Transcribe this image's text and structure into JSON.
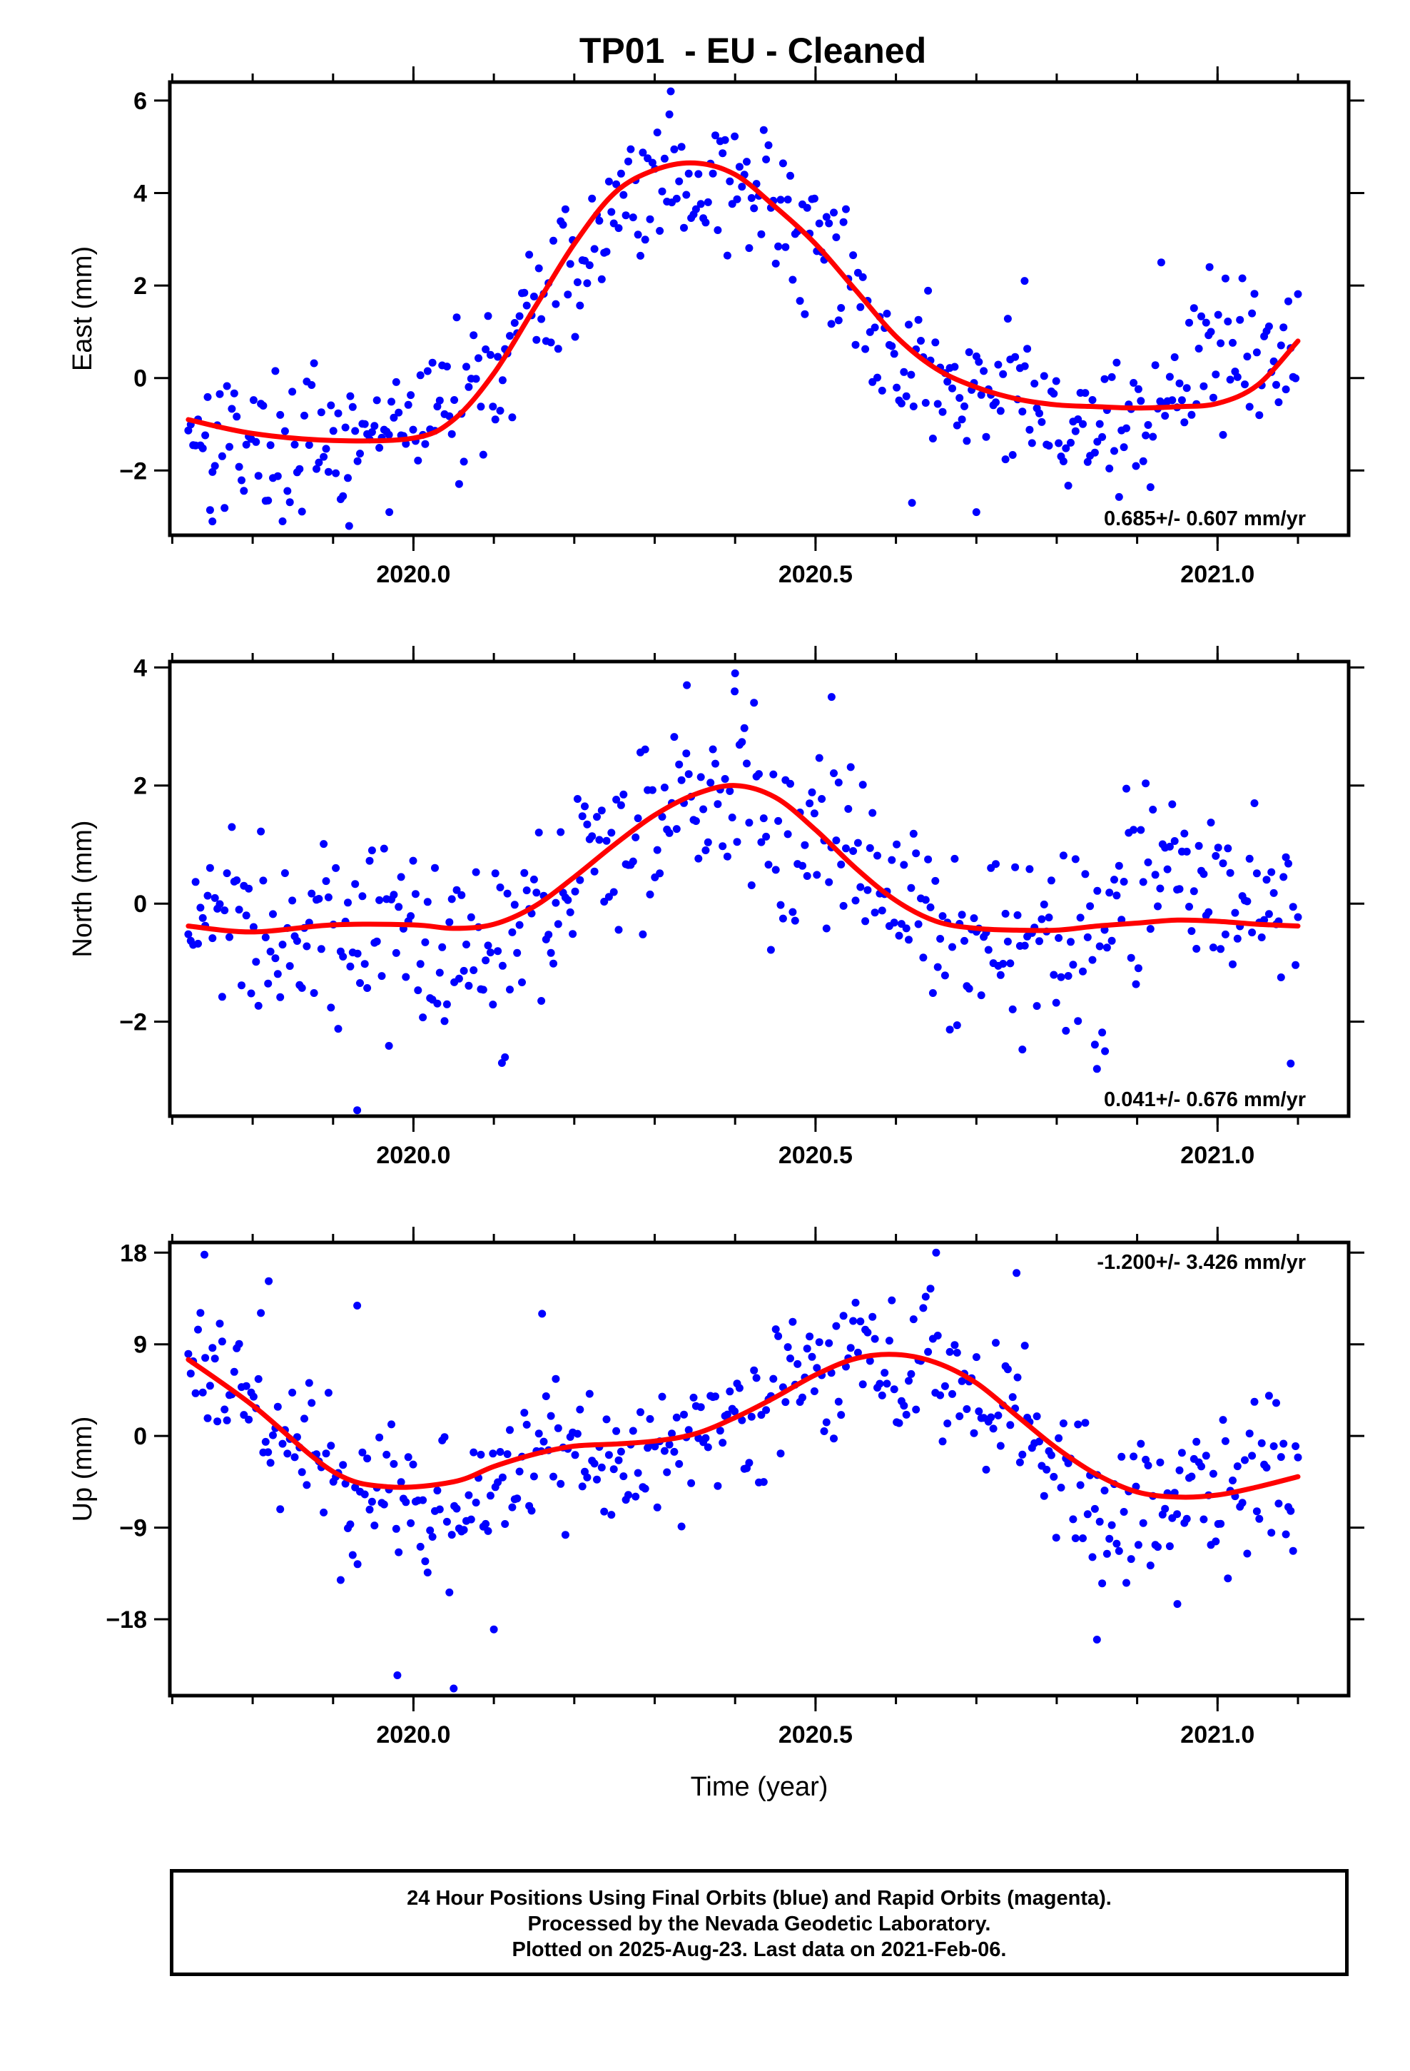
{
  "title": "TP01  - EU - Cleaned",
  "footer": {
    "line1": "24 Hour Positions Using Final Orbits (blue) and Rapid Orbits (magenta).",
    "line2": "Processed by the Nevada Geodetic Laboratory.",
    "line3": "Plotted on 2025-Aug-23. Last data on 2021-Feb-06."
  },
  "colors": {
    "points": "#0000ff",
    "fit": "#ff0000",
    "frame": "#000000"
  },
  "chart_data": [
    {
      "type": "scatter",
      "ylabel": "East (mm)",
      "xlabel": "",
      "xlim": [
        2019.697,
        2021.163
      ],
      "ylim": [
        -3.4,
        6.4
      ],
      "xticks": [
        2020.0,
        2020.5,
        2021.0
      ],
      "xtick_labels": [
        "2020.0",
        "2020.5",
        "2021.0"
      ],
      "yticks": [
        -2,
        0,
        2,
        4,
        6
      ],
      "ytick_labels": [
        "−2",
        "0",
        "2",
        "4",
        "6"
      ],
      "rate": "0.685+/- 0.607 mm/yr",
      "rate_position": "bottom-right",
      "fit": {
        "x": [
          2019.72,
          2019.8,
          2019.9,
          2020.0,
          2020.05,
          2020.1,
          2020.15,
          2020.2,
          2020.25,
          2020.3,
          2020.35,
          2020.4,
          2020.45,
          2020.5,
          2020.55,
          2020.6,
          2020.65,
          2020.7,
          2020.75,
          2020.8,
          2020.85,
          2020.9,
          2020.95,
          2021.0,
          2021.05,
          2021.1
        ],
        "y": [
          -0.9,
          -1.2,
          -1.35,
          -1.3,
          -0.9,
          0.1,
          1.5,
          2.9,
          4.0,
          4.5,
          4.65,
          4.4,
          3.7,
          2.9,
          1.9,
          0.9,
          0.2,
          -0.2,
          -0.45,
          -0.58,
          -0.62,
          -0.65,
          -0.62,
          -0.55,
          -0.15,
          0.8
        ]
      },
      "points": {
        "anchors_x": [
          2019.72,
          2019.8,
          2019.9,
          2020.0,
          2020.05,
          2020.1,
          2020.15,
          2020.2,
          2020.25,
          2020.3,
          2020.35,
          2020.4,
          2020.45,
          2020.5,
          2020.55,
          2020.6,
          2020.65,
          2020.7,
          2020.75,
          2020.8,
          2020.85,
          2020.9,
          2020.95,
          2021.0,
          2021.05,
          2021.1
        ],
        "anchors_y": [
          -0.9,
          -1.4,
          -1.6,
          -1.0,
          -0.4,
          0.2,
          1.3,
          2.4,
          3.7,
          4.3,
          4.2,
          4.2,
          3.5,
          2.9,
          1.8,
          0.5,
          -0.1,
          -0.3,
          -0.4,
          -0.9,
          -1.0,
          -0.9,
          -0.3,
          0.6,
          0.5,
          0.3
        ],
        "count": 460,
        "spread": 0.75,
        "outliers": [
          [
            2019.75,
            -3.1
          ],
          [
            2019.92,
            -3.2
          ],
          [
            2019.97,
            -2.9
          ],
          [
            2020.32,
            6.2
          ],
          [
            2020.62,
            -2.7
          ],
          [
            2020.7,
            -2.9
          ],
          [
            2020.93,
            2.5
          ],
          [
            2020.99,
            2.4
          ],
          [
            2020.76,
            2.1
          ]
        ]
      }
    },
    {
      "type": "scatter",
      "ylabel": "North (mm)",
      "xlabel": "",
      "xlim": [
        2019.697,
        2021.163
      ],
      "ylim": [
        -3.6,
        4.1
      ],
      "xticks": [
        2020.0,
        2020.5,
        2021.0
      ],
      "xtick_labels": [
        "2020.0",
        "2020.5",
        "2021.0"
      ],
      "yticks": [
        -2,
        0,
        2,
        4
      ],
      "ytick_labels": [
        "−2",
        "0",
        "2",
        "4"
      ],
      "rate": "0.041+/- 0.676 mm/yr",
      "rate_position": "bottom-right",
      "fit": {
        "x": [
          2019.72,
          2019.8,
          2019.9,
          2020.0,
          2020.05,
          2020.1,
          2020.15,
          2020.2,
          2020.25,
          2020.3,
          2020.35,
          2020.4,
          2020.45,
          2020.5,
          2020.55,
          2020.6,
          2020.65,
          2020.7,
          2020.75,
          2020.8,
          2020.85,
          2020.9,
          2020.95,
          2021.0,
          2021.05,
          2021.1
        ],
        "y": [
          -0.38,
          -0.48,
          -0.36,
          -0.36,
          -0.42,
          -0.35,
          -0.05,
          0.45,
          1.0,
          1.5,
          1.85,
          2.0,
          1.8,
          1.25,
          0.6,
          0.05,
          -0.3,
          -0.42,
          -0.45,
          -0.45,
          -0.38,
          -0.33,
          -0.28,
          -0.3,
          -0.35,
          -0.38
        ]
      },
      "points": {
        "anchors_x": [
          2019.72,
          2019.8,
          2019.9,
          2020.0,
          2020.05,
          2020.1,
          2020.15,
          2020.2,
          2020.25,
          2020.3,
          2020.35,
          2020.4,
          2020.45,
          2020.5,
          2020.55,
          2020.6,
          2020.65,
          2020.7,
          2020.75,
          2020.8,
          2020.85,
          2020.9,
          2020.95,
          2021.0,
          2021.05,
          2021.1
        ],
        "anchors_y": [
          -0.4,
          -0.3,
          -0.6,
          -0.3,
          -0.6,
          -0.8,
          -0.2,
          0.3,
          1.0,
          1.6,
          2.0,
          2.2,
          1.2,
          1.3,
          0.7,
          0.1,
          -0.3,
          -0.5,
          -0.6,
          -0.7,
          -0.8,
          0.3,
          0.6,
          0.2,
          0.0,
          -0.5
        ],
        "count": 460,
        "spread": 0.8,
        "outliers": [
          [
            2019.93,
            -3.5
          ],
          [
            2020.11,
            -2.7
          ],
          [
            2020.4,
            3.9
          ],
          [
            2020.85,
            -2.8
          ],
          [
            2020.86,
            -2.5
          ],
          [
            2020.52,
            3.5
          ],
          [
            2020.34,
            3.7
          ]
        ]
      }
    },
    {
      "type": "scatter",
      "ylabel": "Up (mm)",
      "xlabel": "Time (year)",
      "xlim": [
        2019.697,
        2021.163
      ],
      "ylim": [
        -25.5,
        19.0
      ],
      "xticks": [
        2020.0,
        2020.5,
        2021.0
      ],
      "xtick_labels": [
        "2020.0",
        "2020.5",
        "2021.0"
      ],
      "yticks": [
        -18,
        -9,
        0,
        9,
        18
      ],
      "ytick_labels": [
        "−18",
        "−9",
        "0",
        "9",
        "18"
      ],
      "rate": "-1.200+/- 3.426 mm/yr",
      "rate_position": "top-right",
      "fit": {
        "x": [
          2019.72,
          2019.8,
          2019.9,
          2019.97,
          2020.05,
          2020.1,
          2020.15,
          2020.2,
          2020.25,
          2020.3,
          2020.35,
          2020.4,
          2020.45,
          2020.5,
          2020.55,
          2020.6,
          2020.65,
          2020.7,
          2020.75,
          2020.8,
          2020.85,
          2020.9,
          2020.95,
          2021.0,
          2021.05,
          2021.1
        ],
        "y": [
          7.5,
          3.0,
          -3.5,
          -5.0,
          -4.5,
          -3.0,
          -1.8,
          -1.0,
          -0.8,
          -0.5,
          0.2,
          1.8,
          3.8,
          6.0,
          7.6,
          8.0,
          7.2,
          5.2,
          2.0,
          -1.2,
          -3.8,
          -5.5,
          -6.0,
          -5.8,
          -5.0,
          -4.0
        ]
      },
      "points": {
        "anchors_x": [
          2019.72,
          2019.8,
          2019.9,
          2019.97,
          2020.05,
          2020.1,
          2020.15,
          2020.2,
          2020.25,
          2020.3,
          2020.35,
          2020.4,
          2020.45,
          2020.5,
          2020.55,
          2020.6,
          2020.65,
          2020.7,
          2020.75,
          2020.8,
          2020.85,
          2020.9,
          2020.95,
          2021.0,
          2021.05,
          2021.1
        ],
        "anchors_y": [
          8.0,
          3.0,
          -4.5,
          -6.0,
          -7.0,
          -3.5,
          -1.0,
          -2.0,
          -4.0,
          -2.0,
          -0.5,
          1.0,
          5.0,
          7.0,
          7.5,
          8.5,
          8.5,
          5.0,
          2.0,
          -3.5,
          -8.5,
          -7.5,
          -6.0,
          -5.5,
          -5.5,
          -3.5
        ],
        "count": 460,
        "spread": 3.6,
        "outliers": [
          [
            2019.74,
            17.8
          ],
          [
            2019.82,
            15.2
          ],
          [
            2019.98,
            -23.5
          ],
          [
            2020.05,
            -24.8
          ],
          [
            2020.1,
            -19.0
          ],
          [
            2020.85,
            -20.0
          ],
          [
            2020.65,
            18.0
          ],
          [
            2020.75,
            16.0
          ],
          [
            2019.93,
            12.8
          ],
          [
            2020.16,
            12.0
          ],
          [
            2020.95,
            -16.5
          ]
        ]
      }
    }
  ]
}
